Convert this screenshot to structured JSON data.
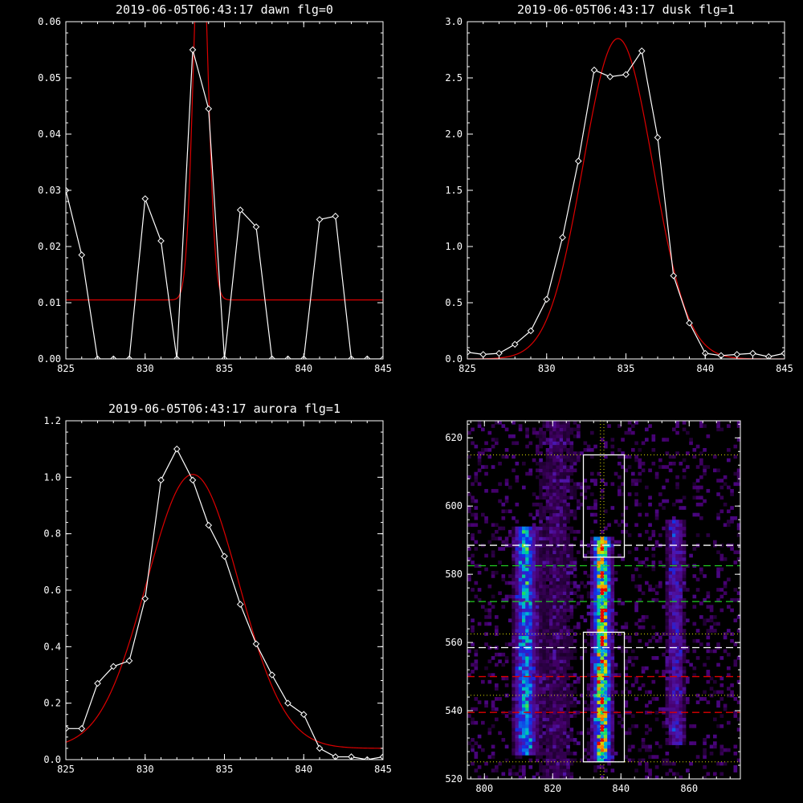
{
  "colors": {
    "background": "#000000",
    "data": "#ffffff",
    "fit": "#dd0000",
    "box": "#ffffff",
    "line_white": "#ffffff",
    "line_green": "#22cc22",
    "line_red": "#dd0000",
    "dotted": "#dddd00"
  },
  "chart_data": [
    {
      "type": "line",
      "title": "2019-06-05T06:43:17 dawn flg=0",
      "xlim": [
        825,
        845
      ],
      "ylim": [
        0,
        0.06
      ],
      "xticks": [
        "825",
        "830",
        "835",
        "840",
        "845"
      ],
      "yticks": [
        "0.00",
        "0.01",
        "0.02",
        "0.03",
        "0.04",
        "0.05",
        "0.06"
      ],
      "series": [
        {
          "x": [
            825,
            826,
            827,
            828,
            829,
            830,
            831,
            832,
            833,
            834,
            835,
            836,
            837,
            838,
            839,
            840,
            841,
            842,
            843,
            844,
            845
          ],
          "y": [
            0.03,
            0.0185,
            0,
            0,
            0,
            0.0285,
            0.021,
            0,
            0.055,
            0.0445,
            0,
            0.0265,
            0.0235,
            0,
            0,
            0,
            0.0248,
            0.0254,
            0,
            0,
            0
          ]
        }
      ],
      "fit": {
        "baseline": 0.0105,
        "amplitude": 0.07,
        "center": 833.5,
        "sigma": 0.45
      }
    },
    {
      "type": "line",
      "title": "2019-06-05T06:43:17 dusk flg=1",
      "xlim": [
        825,
        845
      ],
      "ylim": [
        0,
        3.0
      ],
      "xticks": [
        "825",
        "830",
        "835",
        "840",
        "845"
      ],
      "yticks": [
        "0.0",
        "0.5",
        "1.0",
        "1.5",
        "2.0",
        "2.5",
        "3.0"
      ],
      "series": [
        {
          "x": [
            825,
            826,
            827,
            828,
            829,
            830,
            831,
            832,
            833,
            834,
            835,
            836,
            837,
            838,
            839,
            840,
            841,
            842,
            843,
            844,
            845
          ],
          "y": [
            0.06,
            0.04,
            0.05,
            0.13,
            0.25,
            0.53,
            1.08,
            1.76,
            2.57,
            2.51,
            2.53,
            2.74,
            1.97,
            0.74,
            0.32,
            0.05,
            0.03,
            0.04,
            0.05,
            0.02,
            0.05
          ]
        }
      ],
      "fit": {
        "baseline": 0.0,
        "amplitude": 2.85,
        "center": 834.5,
        "sigma": 2.2
      }
    },
    {
      "type": "line",
      "title": "2019-06-05T06:43:17 aurora flg=1",
      "xlim": [
        825,
        845
      ],
      "ylim": [
        0,
        1.2
      ],
      "xticks": [
        "825",
        "830",
        "835",
        "840",
        "845"
      ],
      "yticks": [
        "0.0",
        "0.2",
        "0.4",
        "0.6",
        "0.8",
        "1.0",
        "1.2"
      ],
      "series": [
        {
          "x": [
            825,
            826,
            827,
            828,
            829,
            830,
            831,
            832,
            833,
            834,
            835,
            836,
            837,
            838,
            839,
            840,
            841,
            842,
            843,
            844,
            845
          ],
          "y": [
            0.11,
            0.11,
            0.27,
            0.33,
            0.35,
            0.57,
            0.99,
            1.1,
            0.99,
            0.83,
            0.72,
            0.55,
            0.41,
            0.3,
            0.2,
            0.16,
            0.04,
            0.01,
            0.01,
            0.0,
            0.01
          ]
        }
      ],
      "fit": {
        "baseline": 0.04,
        "amplitude": 0.97,
        "center": 833.0,
        "sigma": 2.9
      }
    },
    {
      "type": "heatmap",
      "title": "",
      "xlim": [
        795,
        875
      ],
      "ylim": [
        520,
        625
      ],
      "xticks": [
        "800",
        "820",
        "840",
        "860"
      ],
      "yticks": [
        "520",
        "540",
        "560",
        "580",
        "600",
        "620"
      ],
      "streaks": [
        {
          "x": 812,
          "width": 3.5,
          "y_range": [
            527,
            593
          ],
          "strength": 0.55
        },
        {
          "x": 834.5,
          "width": 3.0,
          "y_range": [
            525,
            590
          ],
          "strength": 0.9
        },
        {
          "x": 856,
          "width": 3.0,
          "y_range": [
            530,
            595
          ],
          "strength": 0.3
        },
        {
          "x": 821,
          "width": 8,
          "y_range": [
            520,
            625
          ],
          "strength": 0.12
        }
      ],
      "boxes": [
        {
          "x": [
            829,
            841
          ],
          "y": [
            585,
            615
          ]
        },
        {
          "x": [
            829,
            841
          ],
          "y": [
            525,
            563
          ]
        }
      ],
      "hlines": [
        {
          "y": 615,
          "style": "dotted",
          "color": "dotted"
        },
        {
          "y": 588.5,
          "style": "dashed",
          "color": "line_white"
        },
        {
          "y": 582.5,
          "style": "dashed",
          "color": "line_green"
        },
        {
          "y": 572,
          "style": "dashed",
          "color": "line_green"
        },
        {
          "y": 562.5,
          "style": "dotted",
          "color": "dotted"
        },
        {
          "y": 558.5,
          "style": "dashed",
          "color": "line_white"
        },
        {
          "y": 550,
          "style": "dashed",
          "color": "line_red"
        },
        {
          "y": 544.5,
          "style": "dotted",
          "color": "dotted"
        },
        {
          "y": 539.5,
          "style": "dashed",
          "color": "line_red"
        },
        {
          "y": 525,
          "style": "dotted",
          "color": "dotted"
        }
      ],
      "vlines": [
        {
          "x": 834,
          "style": "dotted",
          "color": "dotted"
        },
        {
          "x": 835,
          "style": "dotted",
          "color": "dotted"
        }
      ]
    }
  ]
}
